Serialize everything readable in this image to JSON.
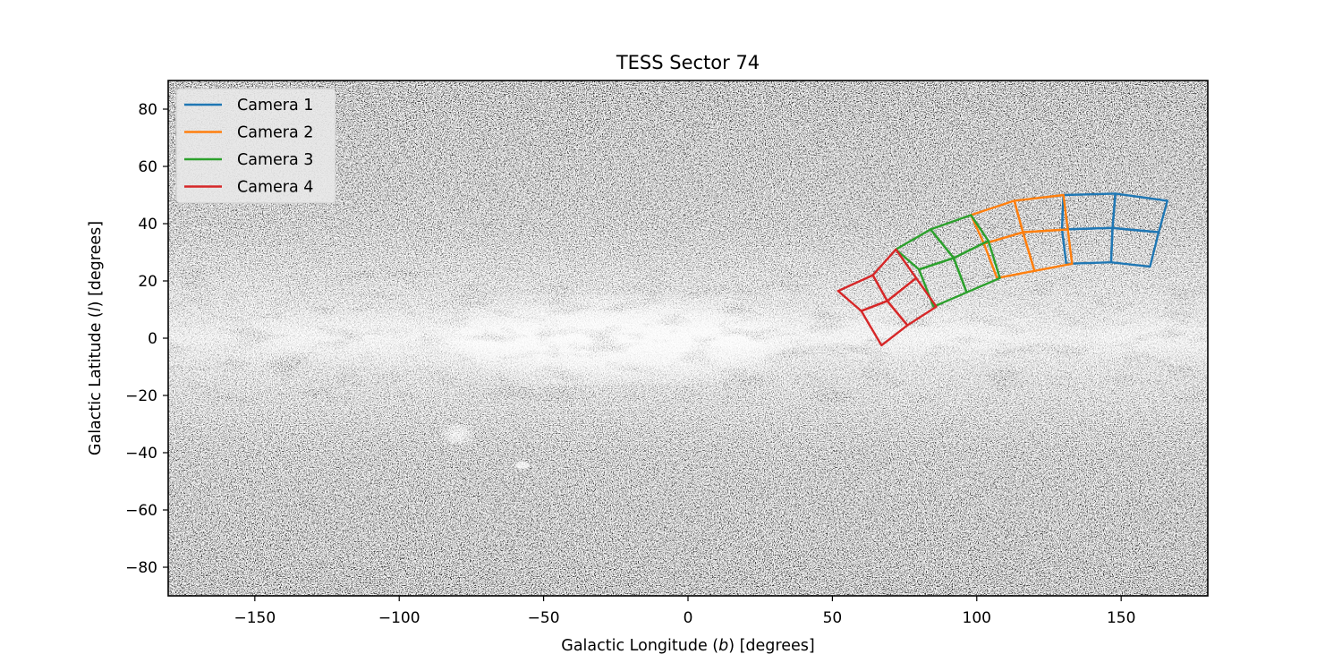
{
  "chart_data": {
    "type": "line",
    "title": "TESS Sector 74",
    "xlabel_parts": [
      "Galactic Longitude (",
      "b",
      ") [degrees]"
    ],
    "ylabel_parts": [
      "Galactic Latitude (",
      "l",
      ") [degrees]"
    ],
    "xlim": [
      -180,
      180
    ],
    "ylim": [
      -90,
      90
    ],
    "xticks": [
      -150,
      -100,
      -50,
      0,
      50,
      100,
      150
    ],
    "yticks": [
      -80,
      -60,
      -40,
      -20,
      0,
      20,
      40,
      60,
      80
    ],
    "xtick_labels": [
      "−150",
      "−100",
      "−50",
      "0",
      "50",
      "100",
      "150"
    ],
    "ytick_labels": [
      "−80",
      "−60",
      "−40",
      "−20",
      "0",
      "20",
      "40",
      "60",
      "80"
    ],
    "background": "grayscale all-sky star map (Milky Way)",
    "legend_position": "upper-left",
    "series": [
      {
        "name": "Camera 1",
        "color": "#1f77b4",
        "ccds": [
          [
            [
              131,
              26
            ],
            [
              146.5,
              26.5
            ],
            [
              147,
              38.5
            ],
            [
              129.5,
              38
            ]
          ],
          [
            [
              129.5,
              38
            ],
            [
              147,
              38.5
            ],
            [
              148,
              50.5
            ],
            [
              130,
              50
            ]
          ],
          [
            [
              146.5,
              26.5
            ],
            [
              160,
              25
            ],
            [
              163,
              37
            ],
            [
              147,
              38.5
            ]
          ],
          [
            [
              147,
              38.5
            ],
            [
              163,
              37
            ],
            [
              166,
              48
            ],
            [
              148,
              50.5
            ]
          ]
        ]
      },
      {
        "name": "Camera 2",
        "color": "#ff7f0e",
        "ccds": [
          [
            [
              107,
              21
            ],
            [
              120,
              23.5
            ],
            [
              116,
              37
            ],
            [
              102.5,
              33
            ]
          ],
          [
            [
              102.5,
              33
            ],
            [
              116,
              37
            ],
            [
              113,
              48
            ],
            [
              98,
              43
            ]
          ],
          [
            [
              120,
              23.5
            ],
            [
              133,
              26
            ],
            [
              131.5,
              38
            ],
            [
              116,
              37
            ]
          ],
          [
            [
              116,
              37
            ],
            [
              131.5,
              38
            ],
            [
              130,
              50
            ],
            [
              113,
              48
            ]
          ]
        ]
      },
      {
        "name": "Camera 3",
        "color": "#2ca02c",
        "ccds": [
          [
            [
              85,
              11
            ],
            [
              96.5,
              16
            ],
            [
              92,
              28
            ],
            [
              80,
              24
            ]
          ],
          [
            [
              80,
              24
            ],
            [
              92,
              28
            ],
            [
              84,
              38
            ],
            [
              72,
              31
            ]
          ],
          [
            [
              96.5,
              16
            ],
            [
              108,
              21
            ],
            [
              104,
              34
            ],
            [
              92,
              28
            ]
          ],
          [
            [
              92,
              28
            ],
            [
              104,
              34
            ],
            [
              98,
              43
            ],
            [
              84,
              38
            ]
          ]
        ]
      },
      {
        "name": "Camera 4",
        "color": "#d62728",
        "ccds": [
          [
            [
              67,
              -2.5
            ],
            [
              76,
              4.5
            ],
            [
              69,
              13
            ],
            [
              60,
              9.5
            ]
          ],
          [
            [
              60,
              9.5
            ],
            [
              69,
              13
            ],
            [
              64,
              22
            ],
            [
              52,
              16.5
            ]
          ],
          [
            [
              76,
              4.5
            ],
            [
              86,
              11
            ],
            [
              79,
              21
            ],
            [
              69,
              13
            ]
          ],
          [
            [
              69,
              13
            ],
            [
              79,
              21
            ],
            [
              72,
              31
            ],
            [
              64,
              22
            ]
          ]
        ]
      }
    ]
  }
}
